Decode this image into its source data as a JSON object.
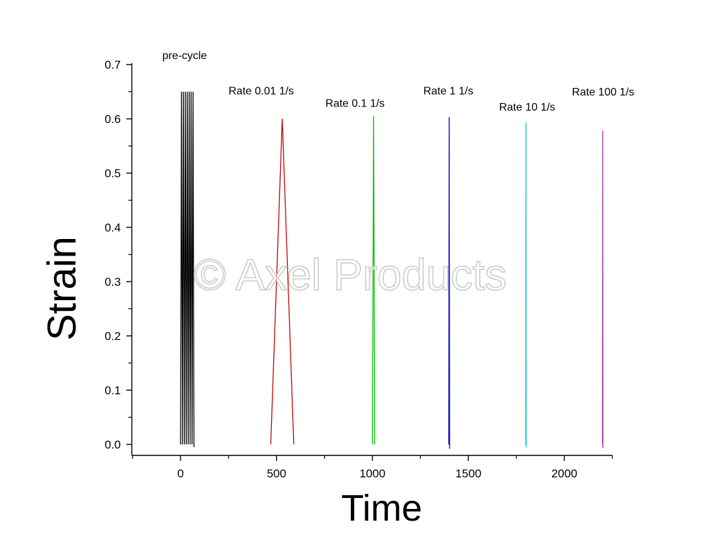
{
  "watermark": "© Axel Products",
  "chart_data": {
    "type": "line",
    "title": "",
    "xlabel": "Time",
    "ylabel": "Strain",
    "xlim": [
      -250,
      2250
    ],
    "ylim": [
      -0.02,
      0.7
    ],
    "xticks": [
      0,
      500,
      1000,
      1500,
      2000
    ],
    "yticks": [
      0.0,
      0.1,
      0.2,
      0.3,
      0.4,
      0.5,
      0.6,
      0.7
    ],
    "ytick_labels": [
      "0.0",
      "0.1",
      "0.2",
      "0.3",
      "0.4",
      "0.5",
      "0.6",
      "0.7"
    ],
    "grid": false,
    "legend": "none",
    "series": [
      {
        "color": "#000000",
        "x": [
          0,
          5,
          10,
          15,
          20,
          25,
          30,
          35,
          40,
          45,
          50,
          55,
          60,
          65,
          70
        ],
        "y": [
          0,
          0.65,
          0,
          0.65,
          0,
          0.65,
          0,
          0.65,
          0,
          0.65,
          0,
          0.65,
          0,
          0.65,
          -0.005
        ]
      },
      {
        "color": "#c00000",
        "x": [
          470,
          530,
          590
        ],
        "y": [
          0,
          0.6,
          0
        ]
      },
      {
        "color": "#00c000",
        "x": [
          1000,
          1006,
          1012
        ],
        "y": [
          0,
          0.605,
          0
        ]
      },
      {
        "color": "#0000c0",
        "x": [
          1398,
          1400,
          1402
        ],
        "y": [
          0,
          0.603,
          -0.008
        ]
      },
      {
        "color": "#00c8c8",
        "x": [
          1799,
          1800,
          1801
        ],
        "y": [
          0,
          0.593,
          -0.005
        ]
      },
      {
        "color": "#a030a0",
        "x": [
          2199,
          2200,
          2201
        ],
        "y": [
          0,
          0.578,
          -0.007
        ]
      }
    ],
    "annotations": [
      {
        "text": "pre-cycle",
        "x": -95,
        "y": 0.71
      },
      {
        "text": "Rate 0.01 1/s",
        "x": 250,
        "y": 0.645
      },
      {
        "text": "Rate 0.1 1/s",
        "x": 755,
        "y": 0.622
      },
      {
        "text": "Rate 1 1/s",
        "x": 1265,
        "y": 0.645
      },
      {
        "text": "Rate 10 1/s",
        "x": 1660,
        "y": 0.615
      },
      {
        "text": "Rate 100 1/s",
        "x": 2040,
        "y": 0.643
      }
    ]
  }
}
